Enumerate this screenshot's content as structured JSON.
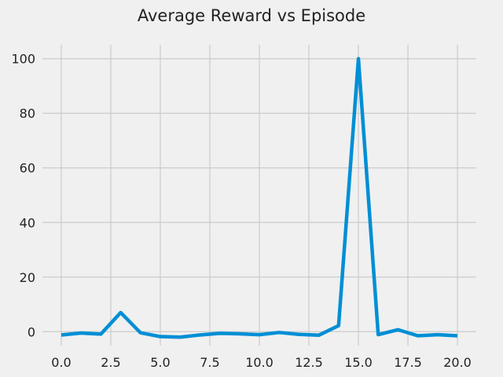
{
  "chart_data": {
    "type": "line",
    "title": "Average Reward vs Episode",
    "xlabel": "",
    "ylabel": "",
    "xlim": [
      -0.95,
      20.95
    ],
    "ylim": [
      -5.1,
      105.1
    ],
    "x_ticks": [
      0.0,
      2.5,
      5.0,
      7.5,
      10.0,
      12.5,
      15.0,
      17.5,
      20.0
    ],
    "x_tick_labels": [
      "0.0",
      "2.5",
      "5.0",
      "7.5",
      "10.0",
      "12.5",
      "15.0",
      "17.5",
      "20.0"
    ],
    "y_ticks": [
      0,
      20,
      40,
      60,
      80,
      100
    ],
    "y_tick_labels": [
      "0",
      "20",
      "40",
      "60",
      "80",
      "100"
    ],
    "grid": true,
    "legend": "none",
    "series": [
      {
        "color": "#008fd5",
        "x": [
          0,
          1,
          2,
          3,
          4,
          5,
          6,
          7,
          8,
          9,
          10,
          11,
          12,
          13,
          14,
          15,
          16,
          17,
          18,
          19,
          20
        ],
        "y": [
          -1.2,
          -0.5,
          -0.9,
          7.0,
          -0.4,
          -1.8,
          -2.0,
          -1.2,
          -0.6,
          -0.8,
          -1.1,
          -0.3,
          -1.0,
          -1.3,
          2.2,
          100,
          -1.1,
          0.7,
          -1.5,
          -1.1,
          -1.5
        ]
      }
    ]
  }
}
